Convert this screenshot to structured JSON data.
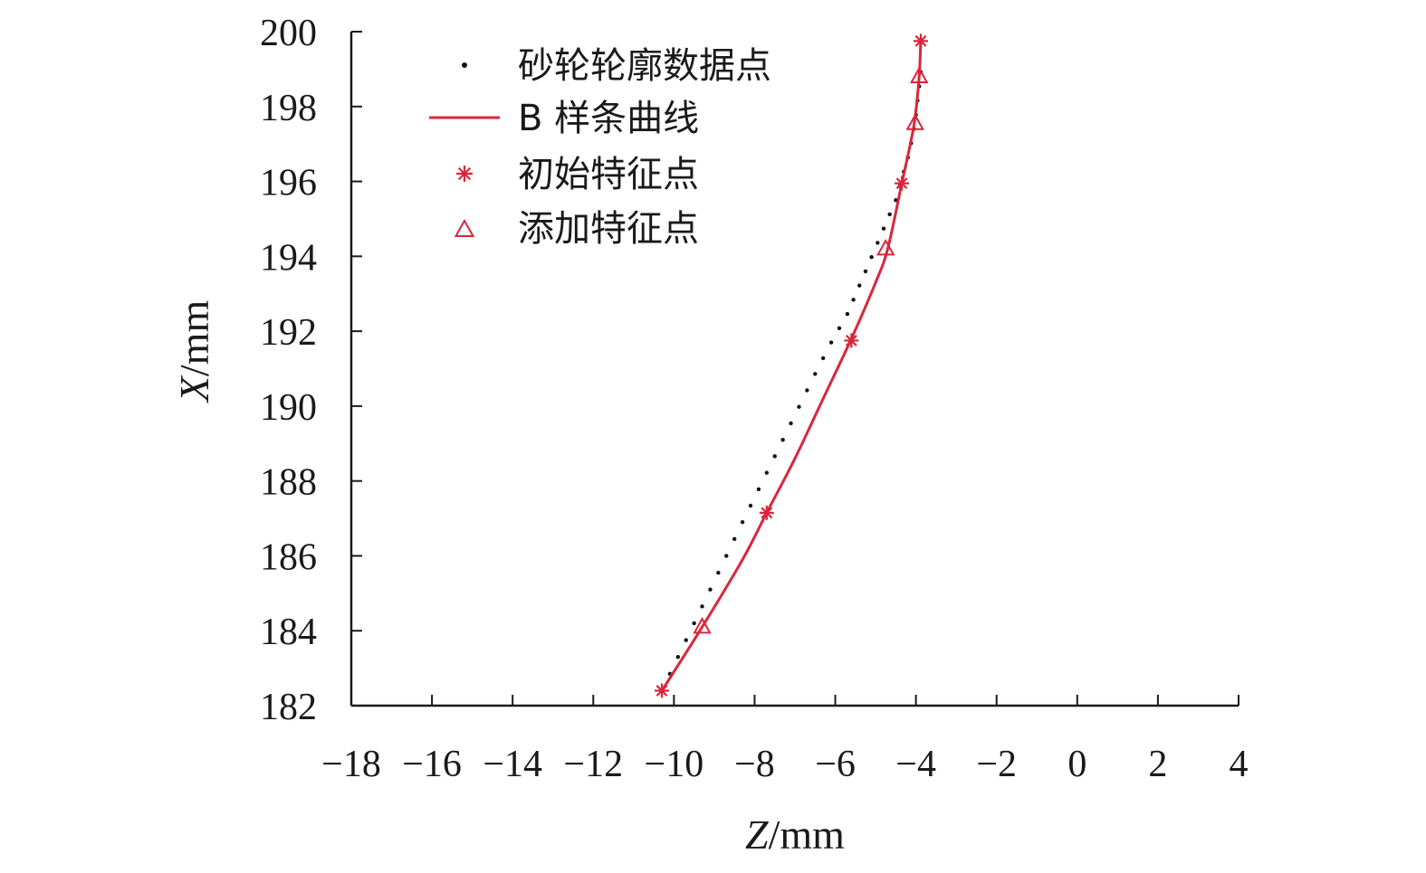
{
  "chart_data": {
    "type": "line",
    "xlabel": {
      "var": "Z",
      "unit": "/mm"
    },
    "ylabel": {
      "var": "X",
      "unit": "/mm"
    },
    "xlim": [
      -18,
      4
    ],
    "ylim": [
      182,
      200
    ],
    "xticks": [
      "−18",
      "−16",
      "−14",
      "−12",
      "−10",
      "−8",
      "−6",
      "−4",
      "−2",
      "0",
      "2",
      "4"
    ],
    "yticks": [
      "182",
      "184",
      "186",
      "188",
      "190",
      "192",
      "194",
      "196",
      "198",
      "200"
    ],
    "grid": false,
    "legend_position": "top-left",
    "colors": {
      "curve": "#d9263c",
      "marker": "#d9263c",
      "points": "#111111",
      "axis": "#1a1a1a"
    },
    "series": [
      {
        "name": "砂轮轮廓数据点",
        "kind": "points",
        "x": [
          -10.3,
          -10.1,
          -9.9,
          -9.7,
          -9.5,
          -9.3,
          -9.1,
          -8.9,
          -8.7,
          -8.5,
          -8.3,
          -8.1,
          -7.9,
          -7.7,
          -7.5,
          -7.3,
          -7.1,
          -6.9,
          -6.7,
          -6.5,
          -6.3,
          -6.1,
          -5.9,
          -5.7,
          -5.55,
          -5.4,
          -5.25,
          -5.1,
          -4.95,
          -4.8,
          -4.65,
          -4.5,
          -4.4,
          -4.3,
          -4.2,
          -4.12,
          -4.05,
          -4.0,
          -3.96,
          -3.92,
          -3.88
        ],
        "y": [
          182.4,
          182.85,
          183.3,
          183.75,
          184.2,
          184.65,
          185.1,
          185.55,
          186.0,
          186.45,
          186.9,
          187.34,
          187.78,
          188.22,
          188.66,
          189.1,
          189.54,
          189.98,
          190.42,
          190.86,
          191.28,
          191.7,
          192.08,
          192.46,
          192.84,
          193.22,
          193.6,
          193.98,
          194.36,
          194.74,
          195.12,
          195.5,
          195.88,
          196.26,
          196.64,
          197.02,
          197.4,
          197.78,
          198.16,
          198.54,
          198.92
        ]
      },
      {
        "name": "B 样条曲线",
        "kind": "line",
        "x": [
          -10.3,
          -9.3,
          -8.3,
          -7.7,
          -7.0,
          -6.3,
          -5.6,
          -5.0,
          -4.7,
          -4.35,
          -4.05,
          -3.92,
          -3.88
        ],
        "y": [
          182.4,
          184.1,
          185.9,
          187.15,
          188.6,
          190.2,
          191.8,
          193.3,
          194.2,
          195.95,
          197.5,
          198.8,
          199.8
        ]
      },
      {
        "name": "初始特征点",
        "kind": "marker-asterisk",
        "x": [
          -10.3,
          -7.7,
          -5.6,
          -4.35,
          -3.88
        ],
        "y": [
          182.4,
          187.15,
          191.75,
          195.95,
          199.75
        ]
      },
      {
        "name": "添加特征点",
        "kind": "marker-triangle",
        "x": [
          -9.3,
          -4.75,
          -4.02,
          -3.92
        ],
        "y": [
          184.1,
          194.2,
          197.55,
          198.8
        ]
      }
    ]
  }
}
